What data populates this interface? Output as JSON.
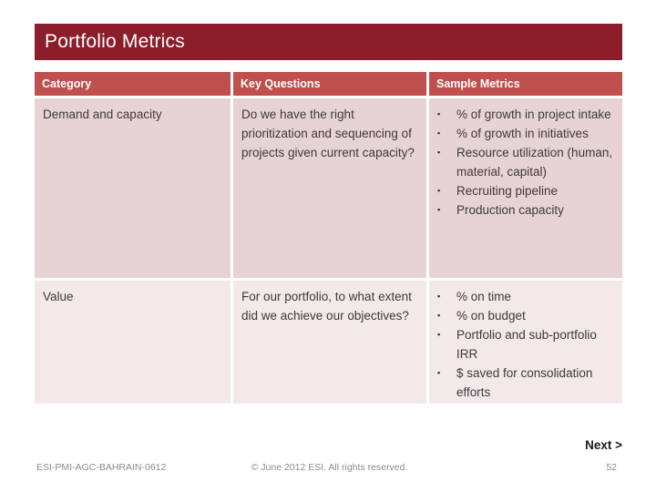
{
  "slide": {
    "title": "Portfolio Metrics"
  },
  "glyphs": {
    "bullet": "▪"
  },
  "colors": {
    "title_bar_bg": "#8C1D2B",
    "table_header_bg": "#C0504D",
    "row_odd_bg": "#E8D3D4",
    "row_even_bg": "#F2E9E8",
    "body_text": "#3D3A39",
    "footer_text": "#8C8C8C"
  },
  "table": {
    "headers": [
      "Category",
      "Key Questions",
      "Sample Metrics"
    ],
    "rows": [
      {
        "category": "Demand and capacity",
        "key_question": "Do we have the right prioritization and sequencing of projects given current capacity?",
        "metrics": [
          "% of growth in project intake",
          "% of growth in initiatives",
          "Resource utilization (human, material, capital)",
          "Recruiting pipeline",
          "Production capacity"
        ]
      },
      {
        "category": "Value",
        "key_question": "For our portfolio, to what extent did we achieve our objectives?",
        "metrics": [
          "% on time",
          "% on budget",
          "Portfolio and sub-portfolio IRR",
          "$ saved for consolidation efforts"
        ]
      }
    ]
  },
  "navigation": {
    "next_label": "Next >"
  },
  "footer": {
    "left": "ESI-PMI-AGC-BAHRAIN-0612",
    "center": "© June 2012 ESI. All rights reserved.",
    "page_number": "52"
  }
}
